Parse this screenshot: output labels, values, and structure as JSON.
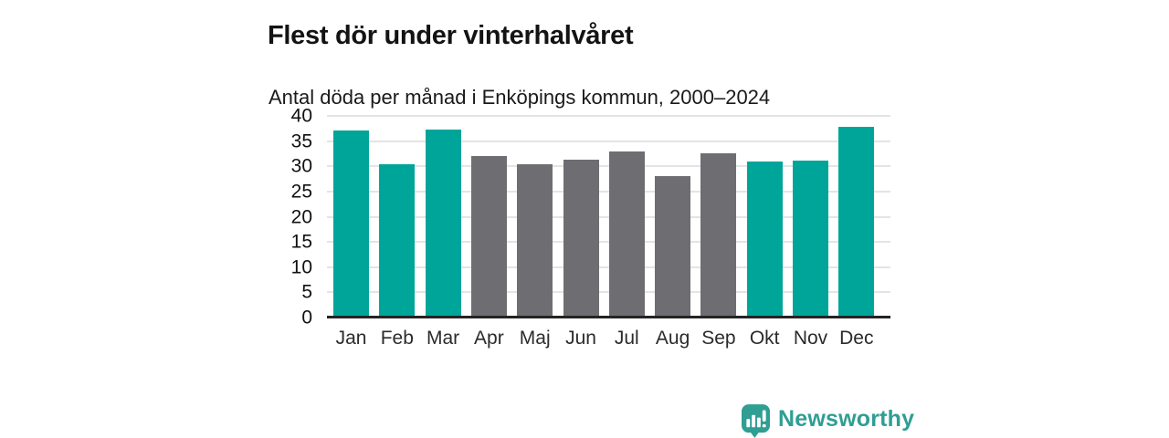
{
  "header": {
    "title": "Flest dör under vinterhalvåret",
    "subtitle": "Antal döda per månad i Enköpings kommun, 2000–2024"
  },
  "chart_data": {
    "type": "bar",
    "title": "Flest dör under vinterhalvåret",
    "subtitle": "Antal döda per månad i Enköpings kommun, 2000–2024",
    "categories": [
      "Jan",
      "Feb",
      "Mar",
      "Apr",
      "Maj",
      "Jun",
      "Jul",
      "Aug",
      "Sep",
      "Okt",
      "Nov",
      "Dec"
    ],
    "values": [
      37.1,
      30.5,
      37.3,
      32.1,
      30.5,
      31.3,
      32.9,
      28.1,
      32.5,
      31.0,
      31.2,
      37.8
    ],
    "highlighted": [
      true,
      true,
      true,
      false,
      false,
      false,
      false,
      false,
      false,
      true,
      true,
      true
    ],
    "xlabel": "",
    "ylabel": "",
    "ylim": [
      0,
      40
    ],
    "yticks": [
      0,
      5,
      10,
      15,
      20,
      25,
      30,
      35,
      40
    ],
    "grid": true,
    "legend_position": "none",
    "colors": {
      "winter_bar": "#00a59a",
      "summer_bar": "#6e6d72",
      "gridline": "#e4e4e4",
      "axis_line": "#242424",
      "tick_text": "#2b2b2b"
    }
  },
  "footer": {
    "logo_text": "Newsworthy",
    "logo_icon": "bar-chart-speech-bubble-icon",
    "logo_color": "#2f9e93"
  }
}
